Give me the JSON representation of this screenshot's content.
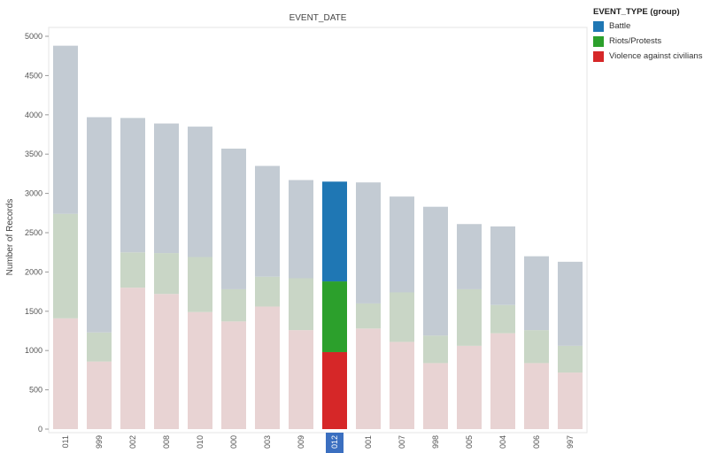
{
  "chart_data": {
    "type": "bar",
    "stacked": true,
    "title": "EVENT_DATE",
    "ylabel": "Number of Records",
    "xlabel": "",
    "ylim": [
      0,
      5000
    ],
    "yticks": [
      0,
      500,
      1000,
      1500,
      2000,
      2500,
      3000,
      3500,
      4000,
      4500,
      5000
    ],
    "grid": false,
    "legend_position": "top-right",
    "legend_title": "EVENT_TYPE (group)",
    "highlighted_category": "012",
    "categories": [
      "011",
      "999",
      "002",
      "008",
      "010",
      "000",
      "003",
      "009",
      "012",
      "001",
      "007",
      "998",
      "005",
      "004",
      "006",
      "997"
    ],
    "series": [
      {
        "name": "Violence against civilians",
        "color": "#d62728",
        "faded_color": "#e8d3d3",
        "values": [
          1410,
          860,
          1800,
          1720,
          1490,
          1370,
          1560,
          1260,
          980,
          1280,
          1110,
          840,
          1060,
          1220,
          840,
          720
        ]
      },
      {
        "name": "Riots/Protests",
        "color": "#2ca02c",
        "faded_color": "#c9d6c6",
        "values": [
          1330,
          370,
          450,
          520,
          700,
          410,
          380,
          660,
          900,
          320,
          630,
          350,
          720,
          360,
          420,
          340
        ]
      },
      {
        "name": "Battle",
        "color": "#1f77b4",
        "faded_color": "#c3cbd3",
        "values": [
          2140,
          2740,
          1710,
          1650,
          1660,
          1790,
          1410,
          1250,
          1270,
          1540,
          1220,
          1640,
          830,
          1000,
          940,
          1070
        ]
      }
    ]
  }
}
